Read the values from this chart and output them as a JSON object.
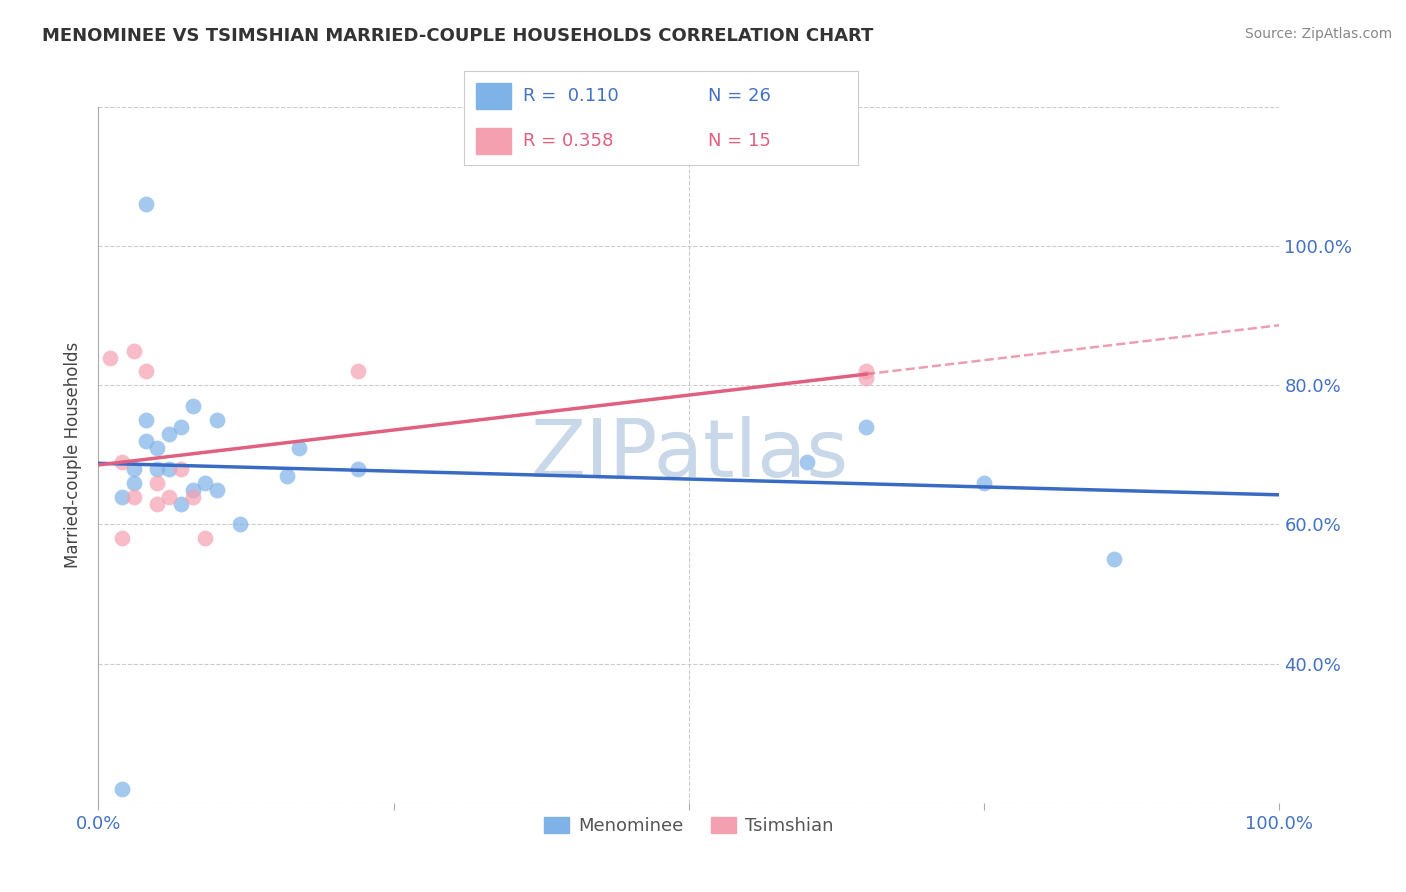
{
  "title": "MENOMINEE VS TSIMSHIAN MARRIED-COUPLE HOUSEHOLDS CORRELATION CHART",
  "source": "Source: ZipAtlas.com",
  "ylabel": "Married-couple Households",
  "xlim": [
    0,
    1.0
  ],
  "ylim": [
    0,
    1.0
  ],
  "grid_color": "#cccccc",
  "watermark": "ZIPatlas",
  "watermark_color": "#c8d8e8",
  "menominee_color": "#7fb3e8",
  "tsimshian_color": "#f4a0b0",
  "line_menominee_color": "#3a6bc4",
  "line_tsimshian_color": "#e06080",
  "menominee_x": [
    0.02,
    0.03,
    0.04,
    0.04,
    0.05,
    0.05,
    0.06,
    0.06,
    0.07,
    0.07,
    0.08,
    0.08,
    0.09,
    0.1,
    0.1,
    0.12,
    0.16,
    0.17,
    0.22,
    0.6,
    0.65,
    0.75,
    0.86,
    0.02,
    0.03,
    0.04
  ],
  "menominee_y": [
    0.02,
    0.46,
    0.52,
    0.55,
    0.48,
    0.51,
    0.48,
    0.53,
    0.43,
    0.54,
    0.45,
    0.57,
    0.46,
    0.45,
    0.55,
    0.4,
    0.47,
    0.51,
    0.48,
    0.49,
    0.54,
    0.46,
    0.35,
    0.44,
    0.48,
    0.86
  ],
  "tsimshian_x": [
    0.01,
    0.02,
    0.03,
    0.04,
    0.05,
    0.05,
    0.06,
    0.07,
    0.08,
    0.09,
    0.22,
    0.65,
    0.65,
    0.02,
    0.03
  ],
  "tsimshian_y": [
    0.64,
    0.38,
    0.44,
    0.62,
    0.46,
    0.43,
    0.44,
    0.48,
    0.44,
    0.38,
    0.62,
    0.61,
    0.62,
    0.49,
    0.65
  ],
  "background_color": "#ffffff"
}
